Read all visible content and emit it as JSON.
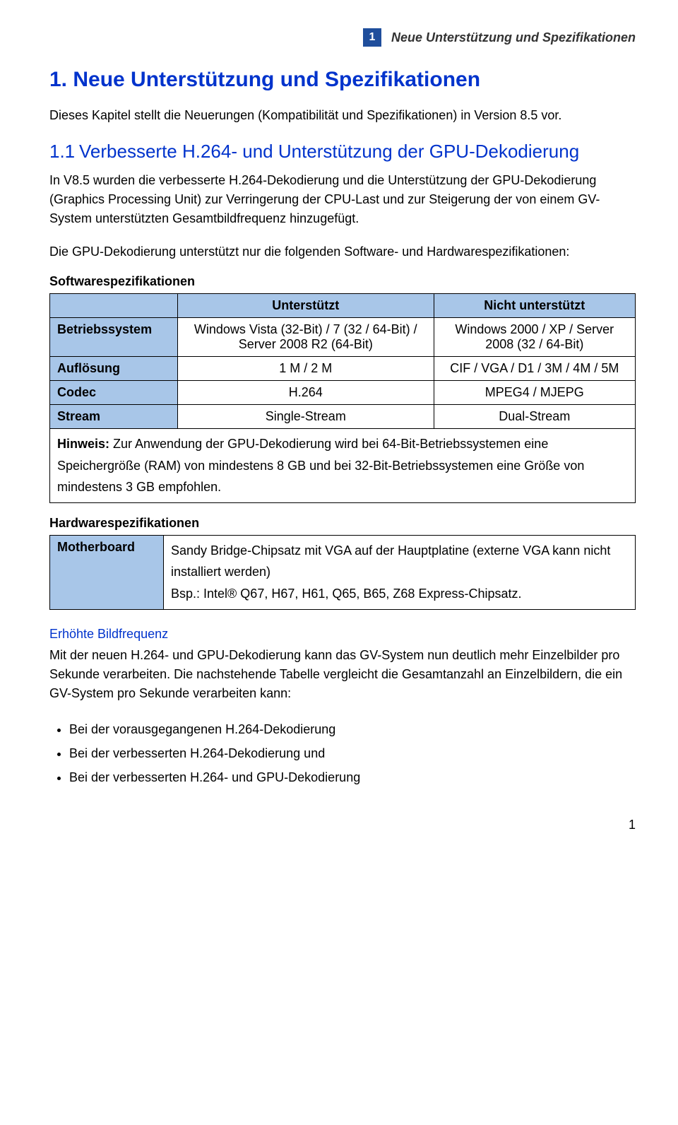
{
  "header": {
    "chapter_number": "1",
    "chapter_title": "Neue Unterstützung und Spezifikationen"
  },
  "h1": "1.   Neue Unterstützung und Spezifikationen",
  "intro": "Dieses Kapitel stellt die Neuerungen (Kompatibilität und Spezifikationen) in Version 8.5 vor.",
  "h2_num": "1.1",
  "h2_text": "Verbesserte H.264- und Unterstützung der GPU-Dekodierung",
  "p1": "In V8.5 wurden die verbesserte H.264-Dekodierung und die Unterstützung der GPU-Dekodierung (Graphics Processing Unit) zur Verringerung der CPU-Last und zur Steigerung der von einem GV-System unterstützten Gesamtbildfrequenz hinzugefügt.",
  "p2": "Die GPU-Dekodierung unterstützt nur die folgenden Software- und Hardwarespezifikationen:",
  "sw_label": "Softwarespezifikationen",
  "sw_table": {
    "head_supported": "Unterstützt",
    "head_unsupported": "Nicht unterstützt",
    "rows": [
      {
        "label": "Betriebssystem",
        "supported": "Windows Vista (32-Bit) / 7 (32 / 64-Bit) / Server 2008 R2 (64-Bit)",
        "unsupported": "Windows 2000 / XP / Server 2008 (32 / 64-Bit)"
      },
      {
        "label": "Auflösung",
        "supported": "1 M / 2 M",
        "unsupported": "CIF / VGA / D1 / 3M / 4M / 5M"
      },
      {
        "label": "Codec",
        "supported": "H.264",
        "unsupported": "MPEG4 / MJEPG"
      },
      {
        "label": "Stream",
        "supported": "Single-Stream",
        "unsupported": "Dual-Stream"
      }
    ],
    "note_label": "Hinweis:",
    "note_text": " Zur Anwendung der GPU-Dekodierung wird bei 64-Bit-Betriebssystemen eine Speichergröße (RAM) von mindestens 8 GB und bei 32-Bit-Betriebssystemen eine Größe von mindestens 3 GB empfohlen."
  },
  "hw_label": "Hardwarespezifikationen",
  "hw_table": {
    "row_label": "Motherboard",
    "row_text": "Sandy Bridge-Chipsatz mit VGA auf der Hauptplatine (externe VGA kann nicht installiert werden)\nBsp.: Intel® Q67, H67, H61, Q65, B65, Z68 Express-Chipsatz."
  },
  "fr_heading": "Erhöhte Bildfrequenz",
  "fr_p": "Mit der neuen H.264- und GPU-Dekodierung kann das GV-System nun deutlich mehr Einzelbilder pro Sekunde verarbeiten. Die nachstehende Tabelle vergleicht die Gesamtanzahl an Einzelbildern, die ein GV-System pro Sekunde verarbeiten kann:",
  "bullets": [
    "Bei der vorausgegangenen H.264-Dekodierung",
    "Bei der verbesserten H.264-Dekodierung und",
    "Bei der verbesserten H.264- und GPU-Dekodierung"
  ],
  "page_number": "1"
}
